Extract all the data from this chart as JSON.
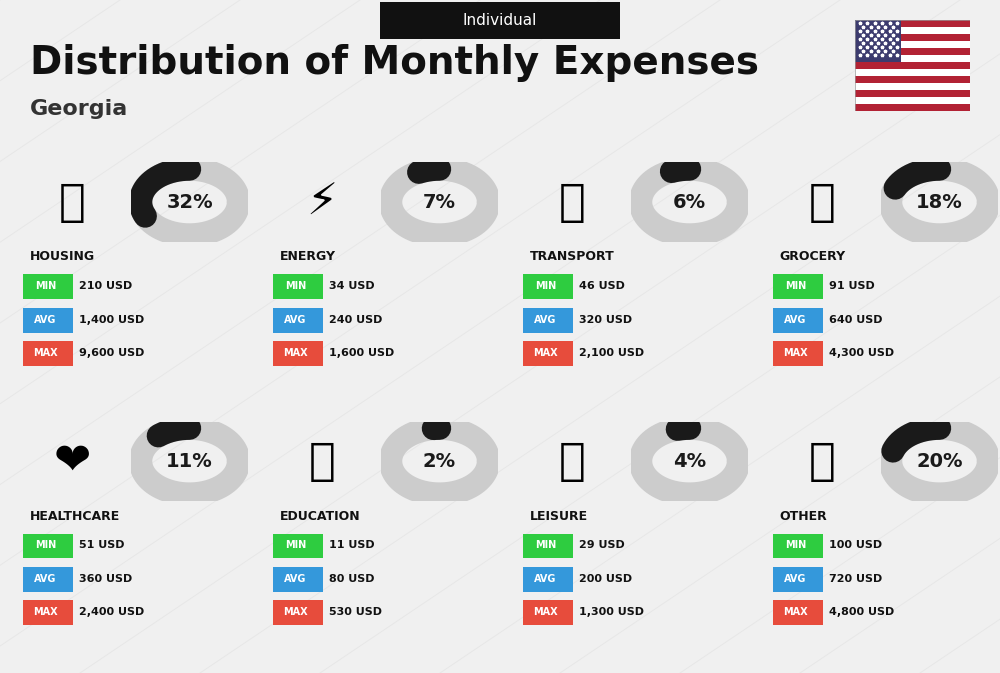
{
  "title": "Distribution of Monthly Expenses",
  "subtitle": "Individual",
  "location": "Georgia",
  "bg_color": "#f0f0f0",
  "categories": [
    {
      "name": "HOUSING",
      "percent": 32,
      "min_val": "210 USD",
      "avg_val": "1,400 USD",
      "max_val": "9,600 USD",
      "icon_char": "🏢",
      "row": 0,
      "col": 0
    },
    {
      "name": "ENERGY",
      "percent": 7,
      "min_val": "34 USD",
      "avg_val": "240 USD",
      "max_val": "1,600 USD",
      "icon_char": "⚡",
      "row": 0,
      "col": 1
    },
    {
      "name": "TRANSPORT",
      "percent": 6,
      "min_val": "46 USD",
      "avg_val": "320 USD",
      "max_val": "2,100 USD",
      "icon_char": "🚌",
      "row": 0,
      "col": 2
    },
    {
      "name": "GROCERY",
      "percent": 18,
      "min_val": "91 USD",
      "avg_val": "640 USD",
      "max_val": "4,300 USD",
      "icon_char": "🛍",
      "row": 0,
      "col": 3
    },
    {
      "name": "HEALTHCARE",
      "percent": 11,
      "min_val": "51 USD",
      "avg_val": "360 USD",
      "max_val": "2,400 USD",
      "icon_char": "❤",
      "row": 1,
      "col": 0
    },
    {
      "name": "EDUCATION",
      "percent": 2,
      "min_val": "11 USD",
      "avg_val": "80 USD",
      "max_val": "530 USD",
      "icon_char": "🎓",
      "row": 1,
      "col": 1
    },
    {
      "name": "LEISURE",
      "percent": 4,
      "min_val": "29 USD",
      "avg_val": "200 USD",
      "max_val": "1,300 USD",
      "icon_char": "🛍",
      "row": 1,
      "col": 2
    },
    {
      "name": "OTHER",
      "percent": 20,
      "min_val": "100 USD",
      "avg_val": "720 USD",
      "max_val": "4,800 USD",
      "icon_char": "💰",
      "row": 1,
      "col": 3
    }
  ],
  "min_color": "#2ecc40",
  "avg_color": "#3498db",
  "max_color": "#e74c3c",
  "label_color_text": "#ffffff",
  "circle_active_color": "#1a1a1a",
  "circle_bg_color": "#cccccc",
  "text_color": "#111111"
}
